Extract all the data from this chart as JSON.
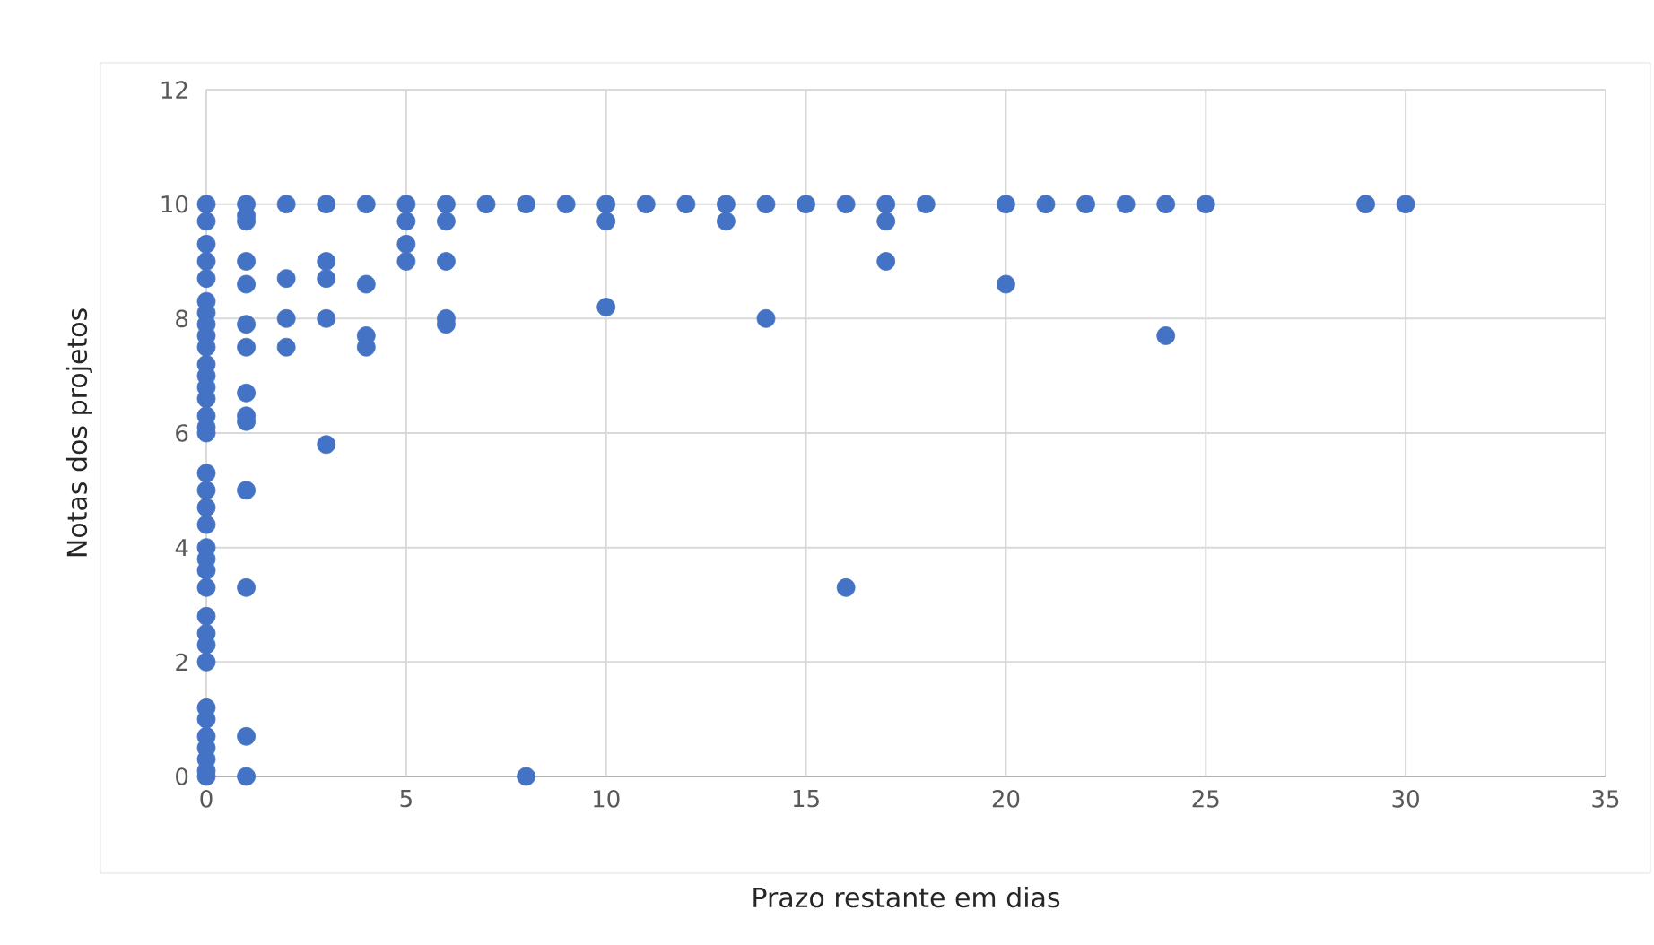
{
  "chart_data": {
    "type": "scatter",
    "xlabel": "Prazo restante em dias",
    "ylabel": "Notas dos projetos",
    "xlim": [
      0,
      35
    ],
    "xticks": [
      0,
      5,
      10,
      15,
      20,
      25,
      30,
      35
    ],
    "ylim": [
      0,
      12
    ],
    "yticks": [
      0,
      2,
      4,
      6,
      8,
      10,
      12
    ],
    "grid": true,
    "marker": "circle",
    "color": "#4472c4",
    "x": [
      0,
      0,
      0,
      0,
      0,
      0,
      0,
      0,
      0,
      0,
      0,
      0,
      0,
      0,
      0,
      0,
      0,
      0,
      0,
      0,
      0,
      0,
      0,
      0,
      0,
      0,
      0,
      0,
      0,
      0,
      0,
      0,
      0,
      0,
      0,
      0,
      1,
      1,
      1,
      1,
      1,
      1,
      1,
      1,
      1,
      1,
      1,
      1,
      1,
      1,
      2,
      2,
      2,
      2,
      3,
      3,
      3,
      3,
      3,
      4,
      4,
      4,
      4,
      5,
      5,
      5,
      5,
      6,
      6,
      6,
      6,
      6,
      7,
      8,
      8,
      9,
      10,
      10,
      10,
      11,
      12,
      13,
      13,
      14,
      14,
      15,
      16,
      16,
      17,
      17,
      17,
      18,
      20,
      20,
      21,
      22,
      23,
      24,
      24,
      25,
      29,
      30
    ],
    "values": [
      10,
      9.7,
      9.3,
      9,
      8.7,
      8.3,
      8.1,
      7.9,
      7.7,
      7.5,
      7.2,
      7,
      6.8,
      6.6,
      6.3,
      6.1,
      6,
      5.3,
      5,
      4.7,
      4.4,
      4,
      3.8,
      3.6,
      3.3,
      2.8,
      2.5,
      2.3,
      2,
      1.2,
      1,
      0.7,
      0.5,
      0.3,
      0.1,
      0,
      10,
      9.8,
      9.7,
      9,
      8.6,
      7.9,
      7.5,
      6.7,
      6.3,
      6.2,
      5,
      3.3,
      0.7,
      0,
      10,
      8.7,
      8,
      7.5,
      10,
      9,
      8.7,
      8,
      5.8,
      10,
      8.6,
      7.7,
      7.5,
      10,
      9.7,
      9.3,
      9,
      10,
      9.7,
      9,
      8,
      7.9,
      10,
      10,
      0,
      10,
      10,
      9.7,
      8.2,
      10,
      10,
      10,
      9.7,
      10,
      8,
      10,
      10,
      3.3,
      10,
      9.7,
      9,
      10,
      10,
      8.6,
      10,
      10,
      10,
      10,
      7.7,
      10,
      10,
      10
    ]
  }
}
